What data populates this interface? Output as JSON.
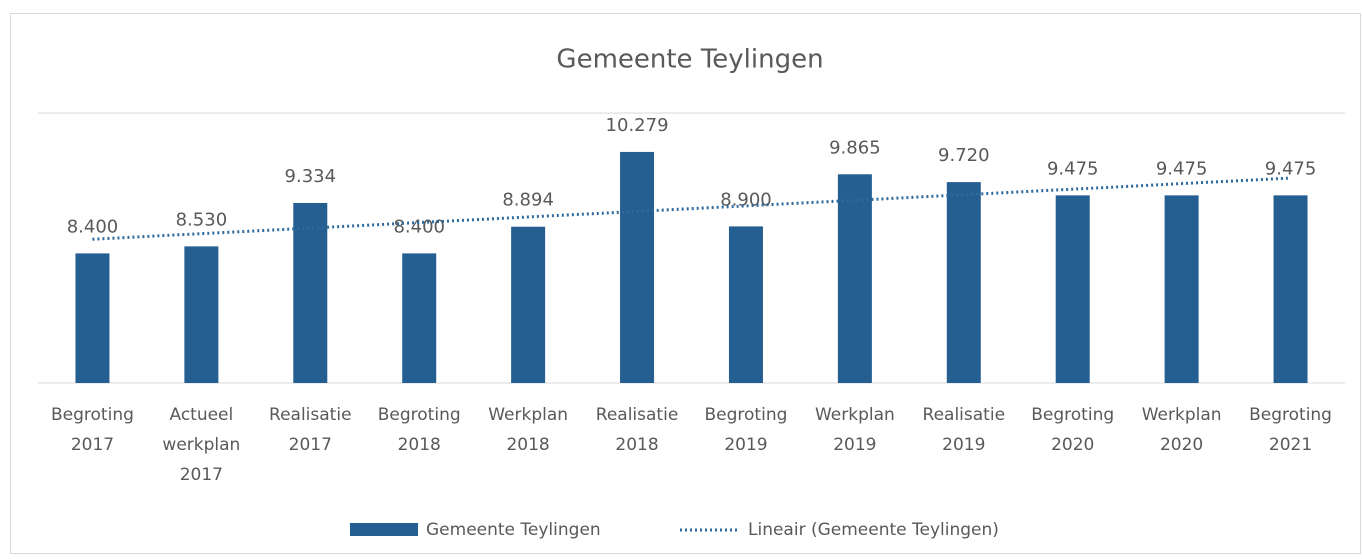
{
  "chart_data": {
    "type": "bar",
    "title": "Gemeente Teylingen",
    "categories": [
      [
        "Begroting",
        "2017"
      ],
      [
        "Actueel",
        "werkplan",
        "2017"
      ],
      [
        "Realisatie",
        "2017"
      ],
      [
        "Begroting",
        "2018"
      ],
      [
        "Werkplan",
        "2018"
      ],
      [
        "Realisatie",
        "2018"
      ],
      [
        "Begroting",
        "2019"
      ],
      [
        "Werkplan",
        "2019"
      ],
      [
        "Realisatie",
        "2019"
      ],
      [
        "Begroting",
        "2020"
      ],
      [
        "Werkplan",
        "2020"
      ],
      [
        "Begroting",
        "2021"
      ]
    ],
    "series": [
      {
        "name": "Gemeente Teylingen",
        "color": "#255e91",
        "values": [
          8400,
          8530,
          9334,
          8400,
          8894,
          10279,
          8900,
          9865,
          9720,
          9475,
          9475,
          9475
        ],
        "value_labels": [
          "8.400",
          "8.530",
          "9.334",
          "8.400",
          "8.894",
          "10.279",
          "8.900",
          "9.865",
          "9.720",
          "9.475",
          "9.475",
          "9.475"
        ]
      }
    ],
    "trendline": {
      "name": "Lineair (Gemeente Teylingen)",
      "color": "#2e6a9e",
      "style": "dotted"
    },
    "ylim": [
      6000,
      11000
    ],
    "legend": "bottom"
  }
}
